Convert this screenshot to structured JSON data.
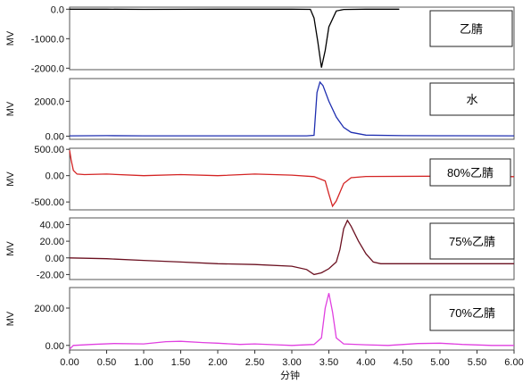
{
  "chart_data": {
    "type": "line",
    "xlabel": "分钟",
    "xlim": [
      0,
      6
    ],
    "xticks": [
      "0.00",
      "0.50",
      "1.00",
      "1.50",
      "2.00",
      "2.50",
      "3.00",
      "3.50",
      "4.00",
      "4.50",
      "5.00",
      "5.50",
      "6.00"
    ],
    "panels": [
      {
        "label": "乙腈",
        "ylabel": "MV",
        "color": "#000000",
        "ylim": [
          -2050,
          70
        ],
        "yticks": [
          0,
          -1000,
          -2000
        ],
        "ytick_labels": [
          "0.0",
          "-1000.0",
          "-2000.0"
        ],
        "x": [
          0,
          0.5,
          1.0,
          2.0,
          3.0,
          3.25,
          3.3,
          3.35,
          3.4,
          3.45,
          3.5,
          3.6,
          3.7,
          4.0,
          4.45
        ],
        "values": [
          0,
          0,
          -5,
          0,
          0,
          -5,
          -300,
          -1100,
          -1980,
          -1400,
          -600,
          -60,
          -10,
          0,
          0
        ]
      },
      {
        "label": "水",
        "ylabel": "MV",
        "color": "#1f2fb0",
        "ylim": [
          -180,
          3300
        ],
        "yticks": [
          0,
          2000
        ],
        "ytick_labels": [
          "0.00",
          "2000.0"
        ],
        "x": [
          0,
          0.5,
          1.0,
          2.0,
          3.0,
          3.2,
          3.3,
          3.34,
          3.38,
          3.42,
          3.5,
          3.6,
          3.7,
          3.8,
          4.0,
          4.5,
          5.0,
          6.0
        ],
        "values": [
          20,
          30,
          20,
          20,
          20,
          20,
          50,
          2500,
          3100,
          2900,
          2000,
          1100,
          500,
          220,
          60,
          30,
          25,
          20
        ]
      },
      {
        "label": "80%乙腈",
        "ylabel": "MV",
        "color": "#d42424",
        "ylim": [
          -650,
          520
        ],
        "yticks": [
          500,
          0,
          -500
        ],
        "ytick_labels": [
          "500.00",
          "0.00",
          "-500.00"
        ],
        "x": [
          0,
          0.02,
          0.05,
          0.1,
          0.2,
          0.5,
          1.0,
          1.5,
          2.0,
          2.5,
          3.0,
          3.3,
          3.45,
          3.5,
          3.55,
          3.6,
          3.7,
          3.8,
          4.0,
          5.0,
          6.0
        ],
        "values": [
          480,
          300,
          100,
          30,
          20,
          30,
          0,
          20,
          0,
          30,
          10,
          -20,
          -100,
          -350,
          -580,
          -480,
          -150,
          -40,
          -15,
          -10,
          -20
        ]
      },
      {
        "label": "75%乙腈",
        "ylabel": "MV",
        "color": "#6b1020",
        "ylim": [
          -26,
          48
        ],
        "yticks": [
          40,
          20,
          0,
          -20
        ],
        "ytick_labels": [
          "40.00",
          "20.00",
          "0.00",
          "-20.00"
        ],
        "x": [
          0,
          0.5,
          1.0,
          1.5,
          2.0,
          2.5,
          3.0,
          3.2,
          3.3,
          3.4,
          3.5,
          3.6,
          3.65,
          3.7,
          3.75,
          3.8,
          3.9,
          4.0,
          4.1,
          4.2,
          5.0,
          6.0
        ],
        "values": [
          0,
          -1,
          -3,
          -5,
          -7,
          -8,
          -10,
          -14,
          -20,
          -18,
          -13,
          -5,
          10,
          35,
          45,
          38,
          20,
          5,
          -5,
          -7,
          -7,
          -7
        ]
      },
      {
        "label": "70%乙腈",
        "ylabel": "MV",
        "color": "#e040e0",
        "ylim": [
          -25,
          310
        ],
        "yticks": [
          200,
          0
        ],
        "ytick_labels": [
          "200.00",
          "0.00"
        ],
        "x": [
          0,
          0.05,
          0.3,
          0.6,
          1.0,
          1.3,
          1.5,
          1.8,
          2.0,
          2.3,
          2.5,
          2.8,
          3.0,
          3.3,
          3.4,
          3.45,
          3.5,
          3.55,
          3.6,
          3.7,
          4.0,
          4.3,
          4.7,
          5.0,
          5.3,
          5.7,
          6.0
        ],
        "values": [
          -20,
          0,
          5,
          10,
          8,
          20,
          22,
          15,
          12,
          5,
          8,
          3,
          0,
          5,
          40,
          200,
          280,
          180,
          40,
          8,
          3,
          0,
          10,
          12,
          5,
          0,
          0
        ]
      }
    ]
  }
}
